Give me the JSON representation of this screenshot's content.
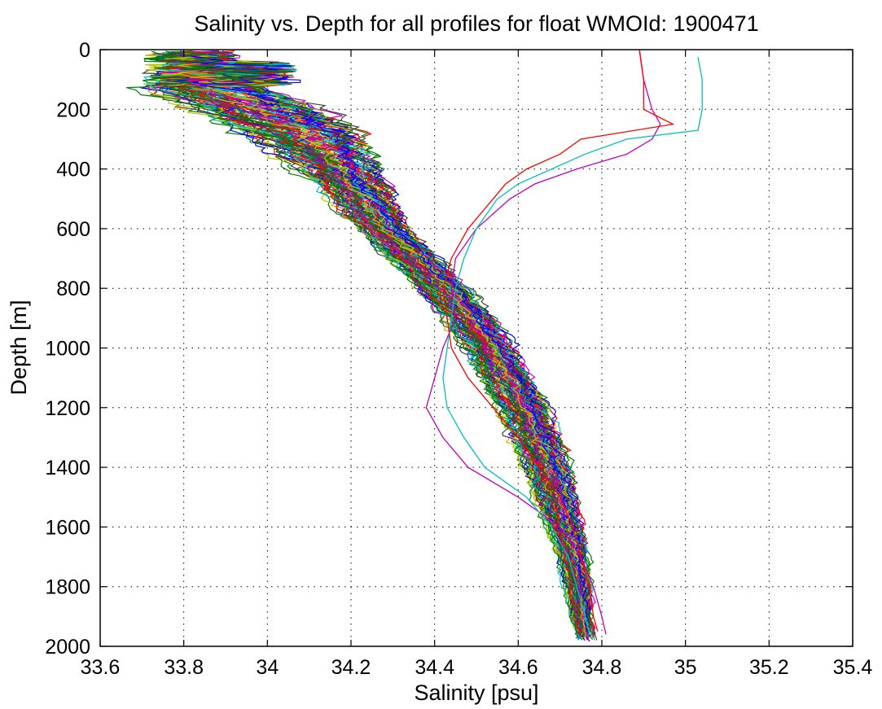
{
  "chart_data": {
    "type": "line",
    "title": "Salinity vs. Depth for all profiles for float WMOId: 1900471",
    "xlabel": "Salinity [psu]",
    "ylabel": "Depth [m]",
    "xlim": [
      33.6,
      35.4
    ],
    "ylim": [
      0,
      2000
    ],
    "y_reversed": true,
    "grid": "dotted",
    "legend": "none",
    "x_ticks": [
      "33.6",
      "33.8",
      "34",
      "34.2",
      "34.4",
      "34.6",
      "34.8",
      "35",
      "35.2",
      "35.4"
    ],
    "y_ticks": [
      "0",
      "200",
      "400",
      "600",
      "800",
      "1000",
      "1200",
      "1400",
      "1600",
      "1800",
      "2000"
    ],
    "palette": [
      "#0000ff",
      "#008000",
      "#ff0000",
      "#00bfbf",
      "#bf00bf",
      "#bfbf00",
      "#404040"
    ],
    "profile_count": 100,
    "envelope": {
      "depths": [
        0,
        100,
        200,
        300,
        400,
        500,
        600,
        700,
        800,
        900,
        1000,
        1100,
        1200,
        1300,
        1400,
        1500,
        1600,
        1700,
        1800,
        1900,
        1960
      ],
      "median_salinity": [
        33.74,
        33.8,
        33.98,
        34.1,
        34.17,
        34.22,
        34.28,
        34.35,
        34.42,
        34.48,
        34.53,
        34.57,
        34.61,
        34.64,
        34.67,
        34.69,
        34.71,
        34.73,
        34.745,
        34.75,
        34.76
      ],
      "spread": [
        0.1,
        0.12,
        0.13,
        0.11,
        0.08,
        0.06,
        0.05,
        0.05,
        0.05,
        0.05,
        0.05,
        0.05,
        0.05,
        0.05,
        0.045,
        0.04,
        0.035,
        0.03,
        0.025,
        0.02,
        0.02
      ]
    },
    "highlighted_profiles": [
      {
        "color": "#bf00bf",
        "depths": [
          0,
          100,
          200,
          250,
          300,
          350,
          400,
          450,
          500,
          600,
          700,
          800,
          900,
          1000,
          1100,
          1200,
          1300,
          1400,
          1500,
          1600,
          1700,
          1800,
          1900,
          1960
        ],
        "salinity": [
          34.89,
          34.9,
          34.92,
          34.94,
          34.92,
          34.86,
          34.74,
          34.64,
          34.58,
          34.5,
          34.45,
          34.44,
          34.45,
          34.42,
          34.4,
          34.38,
          34.42,
          34.48,
          34.6,
          34.7,
          34.75,
          34.78,
          34.8,
          34.81
        ]
      },
      {
        "color": "#00bfbf",
        "depths": [
          25,
          100,
          200,
          270,
          300,
          350,
          400,
          450,
          500,
          600,
          700,
          800,
          900,
          1000,
          1100,
          1200,
          1300,
          1400,
          1500,
          1600,
          1700,
          1800,
          1900,
          1960
        ],
        "salinity": [
          35.03,
          35.04,
          35.04,
          35.03,
          34.86,
          34.76,
          34.68,
          34.6,
          34.55,
          34.5,
          34.47,
          34.45,
          34.44,
          34.43,
          34.42,
          34.43,
          34.47,
          34.52,
          34.62,
          34.68,
          34.72,
          34.74,
          34.76,
          34.77
        ]
      },
      {
        "color": "#ff0000",
        "depths": [
          5,
          100,
          200,
          250,
          300,
          350,
          400,
          450,
          500,
          600,
          700,
          800,
          900,
          1000,
          1100,
          1200,
          1300,
          1400,
          1500,
          1600,
          1700,
          1800,
          1900,
          1950
        ],
        "salinity": [
          34.89,
          34.9,
          34.9,
          34.97,
          34.75,
          34.7,
          34.62,
          34.57,
          34.54,
          34.48,
          34.44,
          34.42,
          34.43,
          34.44,
          34.48,
          34.54,
          34.6,
          34.65,
          34.7,
          34.73,
          34.75,
          34.77,
          34.78,
          34.79
        ]
      }
    ]
  }
}
